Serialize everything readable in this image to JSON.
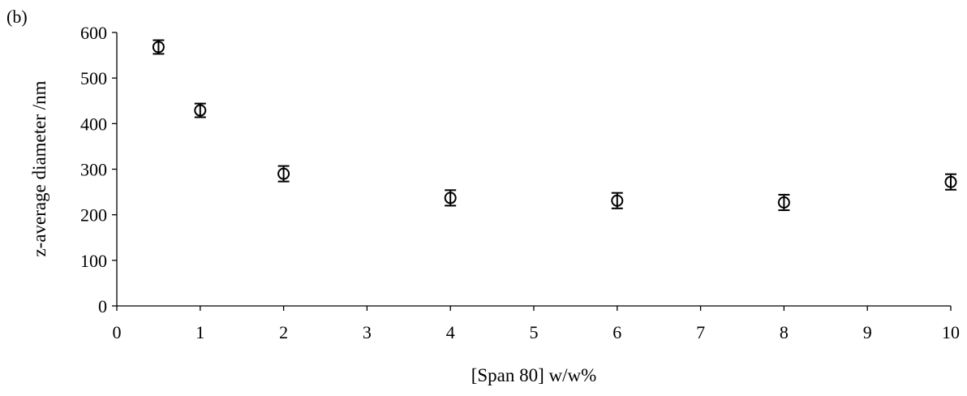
{
  "panel_label": "(b)",
  "chart_data": {
    "type": "scatter",
    "title": "",
    "xlabel": "[Span 80] w/w%",
    "ylabel": "z-average diameter /nm",
    "xlim": [
      0,
      10
    ],
    "ylim": [
      0,
      600
    ],
    "xticks": [
      "0",
      "1",
      "2",
      "3",
      "4",
      "5",
      "6",
      "7",
      "8",
      "9",
      "10"
    ],
    "yticks": [
      "0",
      "100",
      "200",
      "300",
      "400",
      "500",
      "600"
    ],
    "grid": false,
    "legend": "none",
    "marker": "open-circle",
    "series": [
      {
        "x": [
          0.5,
          1,
          2,
          4,
          6,
          8,
          10
        ],
        "y": [
          568,
          429,
          290,
          237,
          231,
          227,
          272
        ],
        "error": [
          15,
          15,
          17,
          17,
          17,
          17,
          17
        ]
      }
    ]
  }
}
